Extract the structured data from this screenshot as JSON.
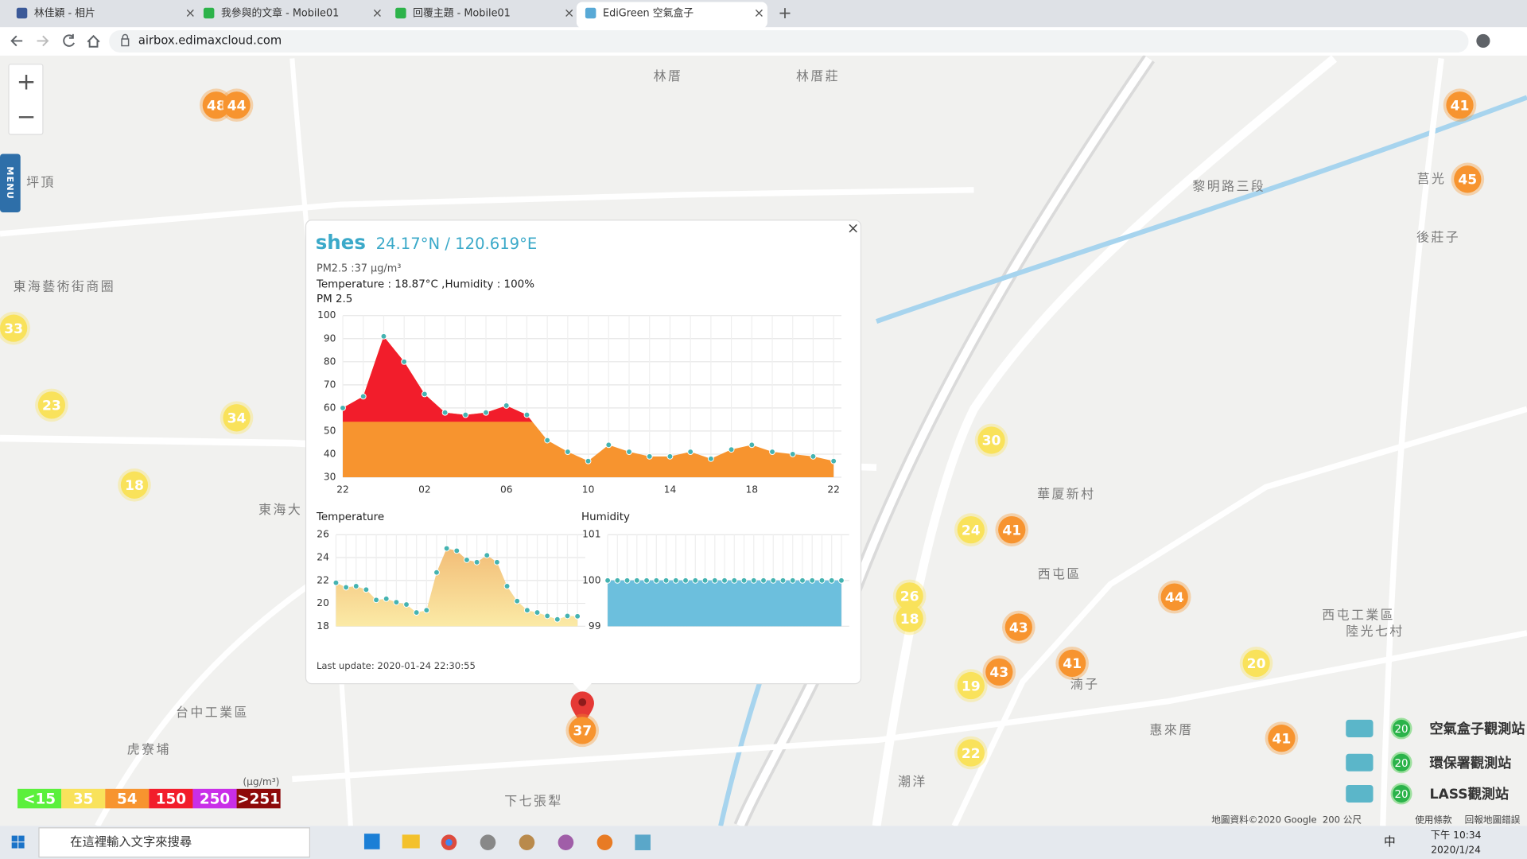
{
  "browser": {
    "tabs": [
      "林佳穎 - 相片",
      "我參與的文章 - Mobile01",
      "回覆主題 - Mobile01",
      "EdiGreen 空氣盒子"
    ],
    "new_tab": "+",
    "url": "airbox.edimaxcloud.com"
  },
  "map": {
    "menu": "MENU",
    "zoom_in": "+",
    "zoom_out": "−",
    "places": [
      "林厝",
      "林厝莊",
      "坪頂",
      "東海藝術街商圈",
      "東海大",
      "華厦新村",
      "西屯區",
      "西屯工業區",
      "陸光七村",
      "台中工業區",
      "虎寮埔",
      "下七張犁",
      "惠來厝",
      "湳子",
      "潮洋",
      "後莊子",
      "莒光",
      "黎明路三段"
    ],
    "markers": [
      48,
      44,
      41,
      45,
      33,
      23,
      34,
      18,
      30,
      24,
      41,
      26,
      18,
      44,
      43,
      43,
      41,
      19,
      20,
      41,
      22,
      37
    ],
    "unit": "(μg/m³)",
    "levels": [
      {
        "value": 15,
        "label": "<15",
        "color": "#5bf03c"
      },
      {
        "value": 35,
        "label": "35",
        "color": "#f9e25b"
      },
      {
        "value": 54,
        "label": "54",
        "color": "#f7942f"
      },
      {
        "value": 150,
        "label": "150",
        "color": "#f21d2b"
      },
      {
        "value": 250,
        "label": "250",
        "color": "#c92ee8"
      },
      {
        "value": 251,
        "label": ">251",
        "color": "#8e0a0a"
      }
    ],
    "station_legend": [
      {
        "badge": 20,
        "label": "空氣盒子觀測站"
      },
      {
        "badge": 20,
        "label": "環保署觀測站"
      },
      {
        "badge": 20,
        "label": "LASS觀測站"
      }
    ],
    "attribution": [
      "地圖資料©2020 Google",
      "200 公尺",
      "使用條款",
      "回報地圖錯誤"
    ]
  },
  "popup": {
    "site": "shes",
    "coords": "24.17°N / 120.619°E",
    "pm25": "PM2.5 :37 μg/m³",
    "weather": "Temperature : 18.87°C ,Humidity : 100%",
    "close": "×",
    "last_update": "Last update: 2020-01-24 22:30:55"
  },
  "chart_data": [
    {
      "type": "area",
      "title": "PM 2.5",
      "categories": [
        "22",
        null,
        null,
        null,
        "02",
        null,
        null,
        null,
        "06",
        null,
        null,
        null,
        "10",
        null,
        null,
        null,
        "14",
        null,
        null,
        null,
        "18",
        null,
        null,
        null,
        "22"
      ],
      "values": [
        60,
        65,
        91,
        80,
        66,
        58,
        57,
        58,
        61,
        57,
        46,
        41,
        37,
        44,
        41,
        39,
        39,
        41,
        38,
        42,
        44,
        41,
        40,
        39,
        37
      ],
      "ylim": [
        30,
        100
      ],
      "yticks": [
        30,
        40,
        50,
        60,
        70,
        80,
        90,
        100
      ],
      "color": "#45b3b1",
      "grid": true
    },
    {
      "type": "area",
      "title": "Temperature",
      "values": [
        21.8,
        21.4,
        21.5,
        21.2,
        20.3,
        20.4,
        20.1,
        19.9,
        19.2,
        19.4,
        22.7,
        24.8,
        24.6,
        23.8,
        23.6,
        24.2,
        23.6,
        21.5,
        20.2,
        19.4,
        19.2,
        18.9,
        18.6,
        18.9,
        18.87
      ],
      "ylim": [
        18,
        26
      ],
      "yticks": [
        18,
        20,
        22,
        24,
        26
      ],
      "color": "#45b3b1",
      "fill": [
        "#f2bd77",
        "#fbeaa6"
      ],
      "grid": true
    },
    {
      "type": "area",
      "title": "Humidity",
      "values": [
        100,
        100,
        100,
        100,
        100,
        100,
        100,
        100,
        100,
        100,
        100,
        100,
        100,
        100,
        100,
        100,
        100,
        100,
        100,
        100,
        100,
        100,
        100,
        100,
        100
      ],
      "ylim": [
        99,
        101
      ],
      "yticks": [
        99,
        100,
        101
      ],
      "color": "#45b3b1",
      "fill": [
        "#6cbfdd",
        "#6cbfdd"
      ],
      "grid": true
    }
  ],
  "taskbar": {
    "search": "在這裡輸入文字來搜尋",
    "ime": "中",
    "time": "下午 10:34",
    "date": "2020/1/24"
  }
}
